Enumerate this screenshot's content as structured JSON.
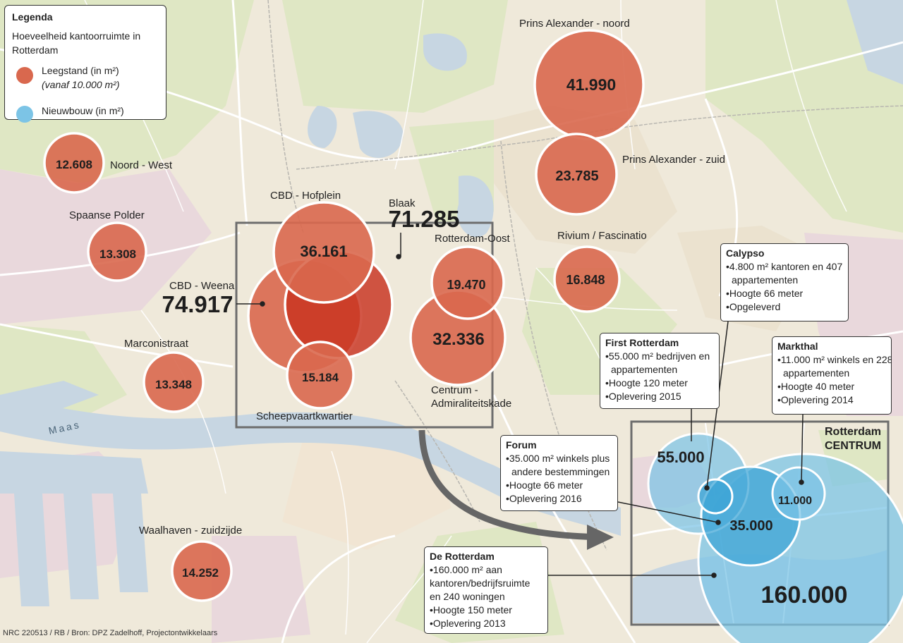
{
  "legend": {
    "title": "Legenda",
    "subtitle": "Hoeveelheid kantoorruimte in Rotterdam",
    "vacancy_label": "Leegstand (in m²)",
    "vacancy_note": "(vanaf 10.000 m²)",
    "newbuild_label": "Nieuwbouw (in m²)"
  },
  "colors": {
    "vacancy": "#d9684e",
    "vacancy_dark": "#c8321f",
    "newbuild": "#7cc4e6",
    "newbuild_dark": "#3aa3d6",
    "water": "#c7d6e2",
    "land": "#efe9da",
    "green": "#dfe7c4",
    "industrial": "#e9d8dc"
  },
  "vacancy_areas": [
    {
      "name": "Prins Alexander - noord",
      "value": "41.990",
      "m2": 41990
    },
    {
      "name": "Prins Alexander - zuid",
      "value": "23.785",
      "m2": 23785
    },
    {
      "name": "Noord - West",
      "value": "12.608",
      "m2": 12608
    },
    {
      "name": "Spaanse Polder",
      "value": "13.308",
      "m2": 13308
    },
    {
      "name": "CBD - Hofplein",
      "value": "36.161",
      "m2": 36161
    },
    {
      "name": "Blaak",
      "value": "71.285",
      "m2": 71285
    },
    {
      "name": "Rotterdam-Oost",
      "value": "19.470",
      "m2": 19470
    },
    {
      "name": "Rivium / Fascinatio",
      "value": "16.848",
      "m2": 16848
    },
    {
      "name": "CBD - Weena",
      "value": "74.917",
      "m2": 74917
    },
    {
      "name": "Centrum - Admiraliteitskade",
      "value": "32.336",
      "m2": 32336
    },
    {
      "name": "Scheepvaartkwartier",
      "value": "15.184",
      "m2": 15184
    },
    {
      "name": "Marconistraat",
      "value": "13.348",
      "m2": 13348
    },
    {
      "name": "Waalhaven - zuidzijde",
      "value": "14.252",
      "m2": 14252
    }
  ],
  "label_lines": {
    "centrum_1": "Centrum -",
    "centrum_2": "Admiraliteitskade"
  },
  "river_label": "Maas",
  "inset": {
    "title_1": "Rotterdam",
    "title_2": "CENTRUM"
  },
  "newbuild": [
    {
      "name": "First Rotterdam",
      "value": "55.000",
      "m2": 55000
    },
    {
      "name": "Forum",
      "value": "35.000",
      "m2": 35000
    },
    {
      "name": "Markthal",
      "value": "11.000",
      "m2": 11000
    },
    {
      "name": "De Rotterdam",
      "value": "160.000",
      "m2": 160000
    },
    {
      "name": "Calypso",
      "m2": 4800
    }
  ],
  "callouts": {
    "calypso": {
      "title": "Calypso",
      "lines": [
        "•4.800 m² kantoren en 407",
        "appartementen",
        "•Hoogte 66 meter",
        "•Opgeleverd"
      ]
    },
    "first": {
      "title": "First Rotterdam",
      "lines": [
        "•55.000 m² bedrijven en",
        "appartementen",
        "•Hoogte 120 meter",
        "•Oplevering 2015"
      ]
    },
    "markthal": {
      "title": "Markthal",
      "lines": [
        "•11.000 m² winkels en 228",
        "appartementen",
        "•Hoogte 40 meter",
        "•Oplevering 2014"
      ]
    },
    "forum": {
      "title": "Forum",
      "lines": [
        "•35.000 m² winkels plus",
        "andere bestemmingen",
        "•Hoogte 66 meter",
        "•Oplevering 2016"
      ]
    },
    "derotterdam": {
      "title": "De Rotterdam",
      "lines": [
        "•160.000 m² aan",
        "kantoren/bedrijfsruimte",
        "en 240 woningen",
        "•Hoogte 150 meter",
        "•Oplevering 2013"
      ]
    }
  },
  "credit": "NRC 220513 / RB / Bron: DPZ Zadelhoff, Projectontwikkelaars"
}
